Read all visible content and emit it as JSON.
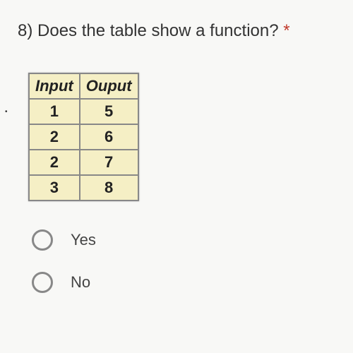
{
  "question": {
    "number": "8)",
    "text": "Does the table show a function?",
    "required_marker": "*"
  },
  "table": {
    "headers": [
      "Input",
      "Ouput"
    ],
    "rows": [
      [
        "1",
        "5"
      ],
      [
        "2",
        "6"
      ],
      [
        "2",
        "7"
      ],
      [
        "3",
        "8"
      ]
    ],
    "cell_bg_color": "#f5efc5",
    "border_color": "#888888",
    "font_weight": "bold"
  },
  "options": [
    {
      "label": "Yes",
      "value": "yes"
    },
    {
      "label": "No",
      "value": "no"
    }
  ],
  "styling": {
    "background_color": "#f8f8f6",
    "text_color": "#333333",
    "asterisk_color": "#c0392b",
    "question_fontsize": 24,
    "table_fontsize": 22,
    "option_fontsize": 22
  }
}
